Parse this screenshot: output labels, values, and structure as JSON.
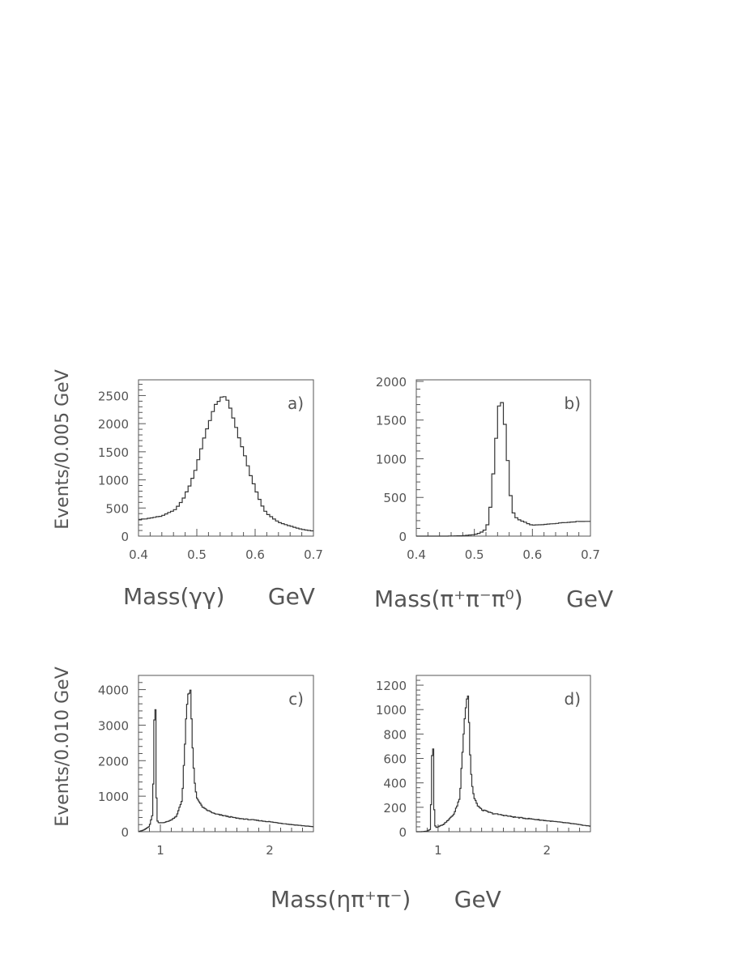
{
  "figure": {
    "ylabel_top": "Events/0.005  GeV",
    "ylabel_bottom": "Events/0.010  GeV",
    "xlabel_bottom": "Mass(ηπ⁺π⁻)      GeV"
  },
  "chart_data": [
    {
      "type": "line",
      "panel": "a)",
      "xlabel": "Mass(γγ)      GeV",
      "ylabel": "Events/0.005  GeV",
      "xlim": [
        0.4,
        0.7
      ],
      "ylim": [
        0,
        2780
      ],
      "xticks": [
        "0.4",
        "0.5",
        "0.6",
        "0.7"
      ],
      "xtick_values": [
        0.4,
        0.5,
        0.6,
        0.7
      ],
      "yticks": [
        "0",
        "500",
        "1000",
        "1500",
        "2000",
        "2500"
      ],
      "ytick_values": [
        0,
        500,
        1000,
        1500,
        2000,
        2500
      ],
      "series": [
        {
          "x": [
            0.4,
            0.42,
            0.44,
            0.46,
            0.47,
            0.48,
            0.49,
            0.5,
            0.51,
            0.52,
            0.53,
            0.54,
            0.545,
            0.55,
            0.56,
            0.57,
            0.58,
            0.59,
            0.6,
            0.61,
            0.62,
            0.64,
            0.66,
            0.68,
            0.7
          ],
          "y": [
            290,
            320,
            360,
            450,
            550,
            720,
            950,
            1250,
            1650,
            2000,
            2300,
            2470,
            2520,
            2450,
            2200,
            1850,
            1500,
            1150,
            850,
            580,
            400,
            250,
            180,
            120,
            90
          ]
        }
      ]
    },
    {
      "type": "line",
      "panel": "b)",
      "xlabel": "Mass(π⁺π⁻π⁰)      GeV",
      "ylabel": "",
      "xlim": [
        0.4,
        0.7
      ],
      "ylim": [
        0,
        2020
      ],
      "xticks": [
        "0.4",
        "0.5",
        "0.6",
        "0.7"
      ],
      "xtick_values": [
        0.4,
        0.5,
        0.6,
        0.7
      ],
      "yticks": [
        "0",
        "500",
        "1000",
        "1500",
        "2000"
      ],
      "ytick_values": [
        0,
        500,
        1000,
        1500,
        2000
      ],
      "series": [
        {
          "x": [
            0.4,
            0.45,
            0.48,
            0.5,
            0.51,
            0.52,
            0.525,
            0.53,
            0.535,
            0.54,
            0.545,
            0.55,
            0.555,
            0.56,
            0.565,
            0.57,
            0.58,
            0.59,
            0.6,
            0.62,
            0.65,
            0.68,
            0.7
          ],
          "y": [
            0,
            0,
            5,
            20,
            40,
            90,
            200,
            550,
            1050,
            1500,
            1830,
            1650,
            1250,
            700,
            350,
            250,
            200,
            170,
            140,
            150,
            170,
            190,
            190
          ]
        }
      ]
    },
    {
      "type": "line",
      "panel": "c)",
      "xlabel": "",
      "ylabel": "Events/0.010  GeV",
      "xlim": [
        0.8,
        2.4
      ],
      "ylim": [
        0,
        4400
      ],
      "xticks": [
        "1",
        "2"
      ],
      "xtick_values": [
        1,
        2
      ],
      "yticks": [
        "0",
        "1000",
        "2000",
        "3000",
        "4000"
      ],
      "ytick_values": [
        0,
        1000,
        2000,
        3000,
        4000
      ],
      "series": [
        {
          "x": [
            0.8,
            0.85,
            0.9,
            0.93,
            0.945,
            0.955,
            0.96,
            0.97,
            0.98,
            1.0,
            1.05,
            1.1,
            1.15,
            1.2,
            1.24,
            1.27,
            1.28,
            1.29,
            1.31,
            1.33,
            1.36,
            1.4,
            1.5,
            1.7,
            2.0,
            2.2,
            2.4
          ],
          "y": [
            0,
            50,
            150,
            500,
            3100,
            3400,
            1500,
            350,
            250,
            250,
            270,
            330,
            450,
            900,
            3500,
            4050,
            3700,
            2600,
            1500,
            1000,
            800,
            650,
            500,
            380,
            280,
            200,
            140
          ]
        }
      ]
    },
    {
      "type": "line",
      "panel": "d)",
      "xlabel": "",
      "ylabel": "",
      "xlim": [
        0.8,
        2.4
      ],
      "ylim": [
        0,
        1280
      ],
      "xticks": [
        "1",
        "2"
      ],
      "xtick_values": [
        1,
        2
      ],
      "yticks": [
        "0",
        "200",
        "400",
        "600",
        "800",
        "1000",
        "1200"
      ],
      "ytick_values": [
        0,
        200,
        400,
        600,
        800,
        1000,
        1200
      ],
      "series": [
        {
          "x": [
            0.8,
            0.85,
            0.9,
            0.93,
            0.945,
            0.955,
            0.96,
            0.97,
            0.98,
            1.0,
            1.05,
            1.1,
            1.15,
            1.2,
            1.24,
            1.27,
            1.28,
            1.29,
            1.31,
            1.33,
            1.36,
            1.4,
            1.5,
            1.7,
            2.0,
            2.2,
            2.4
          ],
          "y": [
            0,
            0,
            5,
            20,
            640,
            690,
            300,
            60,
            35,
            40,
            60,
            100,
            150,
            280,
            900,
            1140,
            1100,
            700,
            400,
            280,
            220,
            180,
            150,
            120,
            90,
            70,
            45
          ]
        }
      ]
    }
  ]
}
